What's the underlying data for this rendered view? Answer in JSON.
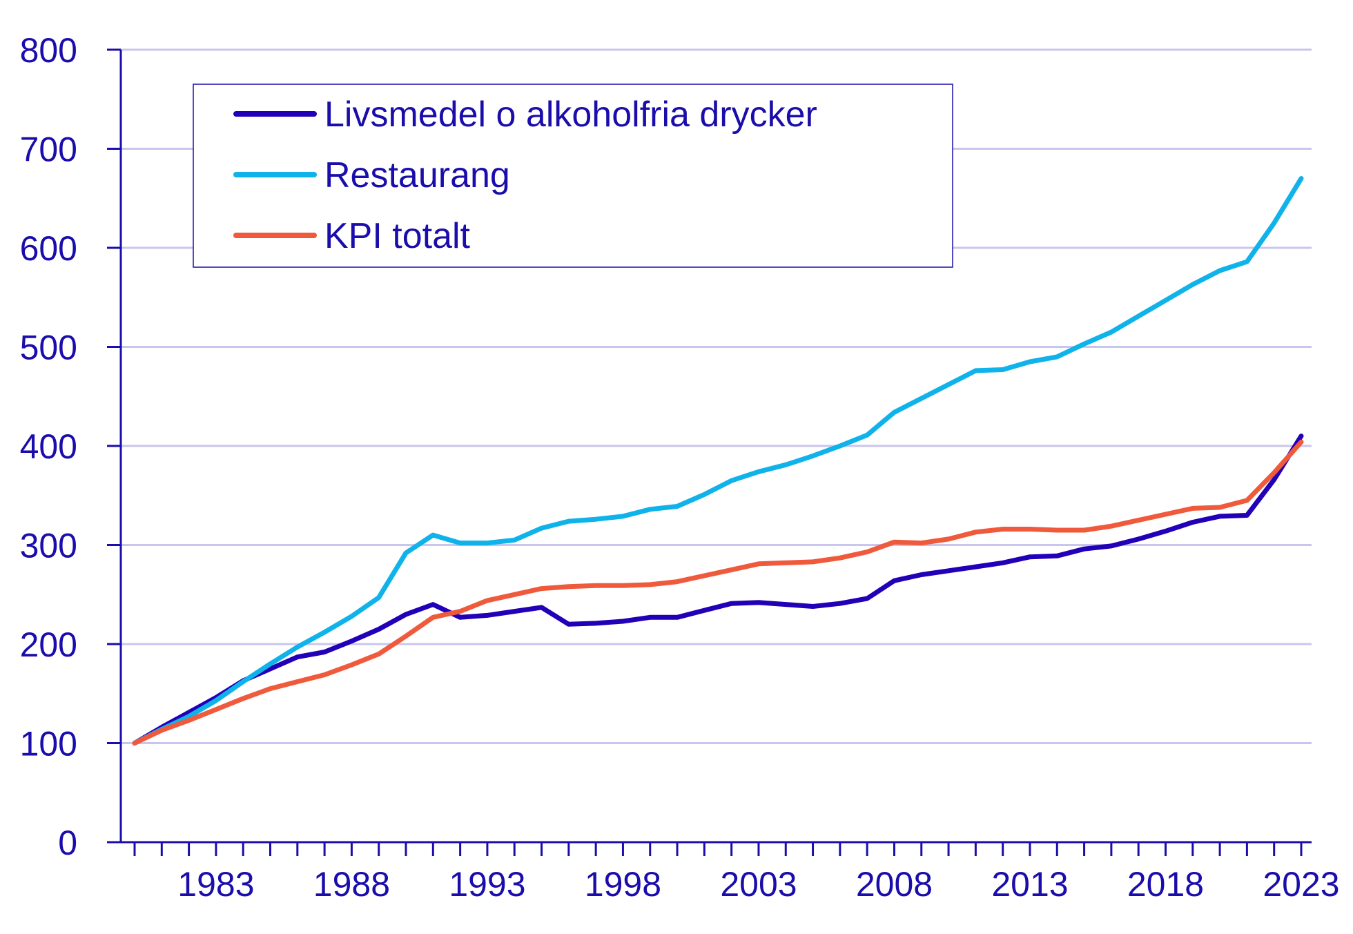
{
  "chart_data": {
    "type": "line",
    "title": "",
    "xlabel": "",
    "ylabel": "",
    "xlim": [
      1980,
      2023
    ],
    "ylim": [
      0,
      800
    ],
    "y_ticks": [
      0,
      100,
      200,
      300,
      400,
      500,
      600,
      700,
      800
    ],
    "x_tick_labels": [
      1983,
      1988,
      1993,
      1998,
      2003,
      2008,
      2013,
      2018,
      2023
    ],
    "grid": "horizontal",
    "legend_position": "top-left",
    "x": [
      1980,
      1981,
      1982,
      1983,
      1984,
      1985,
      1986,
      1987,
      1988,
      1989,
      1990,
      1991,
      1992,
      1993,
      1994,
      1995,
      1996,
      1997,
      1998,
      1999,
      2000,
      2001,
      2002,
      2003,
      2004,
      2005,
      2006,
      2007,
      2008,
      2009,
      2010,
      2011,
      2012,
      2013,
      2014,
      2015,
      2016,
      2017,
      2018,
      2019,
      2020,
      2021,
      2022,
      2023
    ],
    "series": [
      {
        "name": "Livsmedel o alkoholfria drycker",
        "color": "#2200b8",
        "values": [
          100,
          116,
          131,
          146,
          163,
          175,
          187,
          192,
          203,
          215,
          230,
          240,
          227,
          229,
          233,
          237,
          220,
          221,
          223,
          227,
          227,
          234,
          241,
          242,
          240,
          238,
          241,
          246,
          264,
          270,
          274,
          278,
          282,
          288,
          289,
          296,
          299,
          306,
          314,
          323,
          329,
          330,
          366,
          410
        ]
      },
      {
        "name": "Restaurang",
        "color": "#0fb3ea",
        "values": [
          100,
          114,
          127,
          143,
          162,
          180,
          197,
          212,
          228,
          247,
          292,
          310,
          302,
          302,
          305,
          317,
          324,
          326,
          329,
          336,
          339,
          351,
          365,
          374,
          381,
          390,
          400,
          411,
          434,
          448,
          462,
          476,
          477,
          485,
          490,
          503,
          515,
          531,
          547,
          563,
          577,
          586,
          625,
          670
        ]
      },
      {
        "name": "KPI totalt",
        "color": "#f05a3c",
        "values": [
          100,
          113,
          123,
          134,
          145,
          155,
          162,
          169,
          179,
          190,
          208,
          227,
          233,
          244,
          250,
          256,
          258,
          259,
          259,
          260,
          263,
          269,
          275,
          281,
          282,
          283,
          287,
          293,
          303,
          302,
          306,
          313,
          316,
          316,
          315,
          315,
          319,
          325,
          331,
          337,
          338,
          345,
          373,
          404
        ]
      }
    ]
  }
}
